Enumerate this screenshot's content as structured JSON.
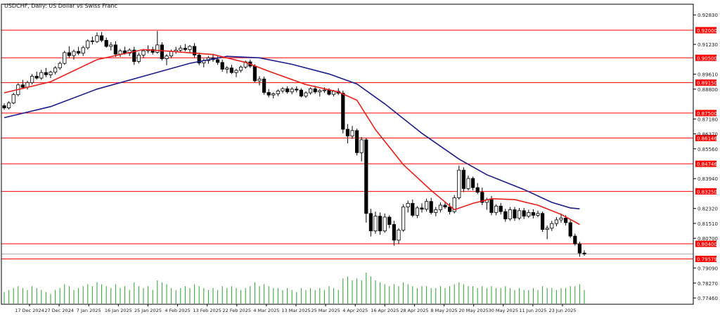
{
  "header": {
    "title": "USDCHF, Daily:  US Dollar vs Swiss Franc"
  },
  "colors": {
    "background": "#ffffff",
    "candle_body": "#000000",
    "candle_bull": "#ffffff",
    "level_line": "#ff0000",
    "level_label_bg": "#ff0000",
    "level_label_text": "#ffffff",
    "ma_fast": "#e8201a",
    "ma_slow": "#1c1c8c",
    "volume": "#2ca02c",
    "axis_text": "#222222"
  },
  "chart_data": {
    "type": "candlestick",
    "symbol": "USDCHF",
    "timeframe": "Daily",
    "y_axis": {
      "range": [
        0.7712,
        0.9341
      ],
      "ticks": [
        {
          "value": 0.9283,
          "label": "0.92830"
        },
        {
          "value": 0.9123,
          "label": "0.91230"
        },
        {
          "value": 0.8961,
          "label": "0.89610"
        },
        {
          "value": 0.888,
          "label": "0.88800"
        },
        {
          "value": 0.8718,
          "label": "0.87180"
        },
        {
          "value": 0.8637,
          "label": "0.86370"
        },
        {
          "value": 0.8556,
          "label": "0.85560"
        },
        {
          "value": 0.8394,
          "label": "0.83940"
        },
        {
          "value": 0.8232,
          "label": "0.82320"
        },
        {
          "value": 0.8151,
          "label": "0.81510"
        },
        {
          "value": 0.807,
          "label": "0.80700"
        },
        {
          "value": 0.7909,
          "label": "0.79090"
        },
        {
          "value": 0.7827,
          "label": "0.78270"
        },
        {
          "value": 0.7746,
          "label": "0.77460"
        }
      ]
    },
    "x_axis": {
      "labels": [
        "17 Dec 2024",
        "27 Dec 2024",
        "7 Jan 2025",
        "16 Jan 2025",
        "25 Jan 2025",
        "4 Feb 2025",
        "13 Feb 2025",
        "22 Feb 2025",
        "4 Mar 2025",
        "13 Mar 2025",
        "25 Mar 2025",
        "4 Apr 2025",
        "16 Apr 2025",
        "28 Apr 2025",
        "8 May 2025",
        "20 May 2025",
        "30 May 2025",
        "11 Jun 2025",
        "23 Jun 2025"
      ]
    },
    "levels": [
      {
        "value": 0.92,
        "label": "0.92000"
      },
      {
        "value": 0.905,
        "label": "0.90500"
      },
      {
        "value": 0.8915,
        "label": "0.89150"
      },
      {
        "value": 0.875,
        "label": "0.87500"
      },
      {
        "value": 0.86146,
        "label": "0.86146"
      },
      {
        "value": 0.84746,
        "label": "0.84746"
      },
      {
        "value": 0.8325,
        "label": "0.83250"
      },
      {
        "value": 0.804,
        "label": "0.80400"
      },
      {
        "value": 0.79579,
        "label": "0.79579"
      }
    ],
    "current_price": 0.7985,
    "volume_max": 16,
    "candles": [
      [
        0.879,
        0.8802,
        0.8768,
        0.8778,
        6
      ],
      [
        0.8778,
        0.8815,
        0.877,
        0.8805,
        7
      ],
      [
        0.8805,
        0.886,
        0.8798,
        0.885,
        8
      ],
      [
        0.885,
        0.8912,
        0.8842,
        0.8903,
        9
      ],
      [
        0.8903,
        0.893,
        0.888,
        0.889,
        8
      ],
      [
        0.889,
        0.8925,
        0.8878,
        0.8915,
        7
      ],
      [
        0.8915,
        0.8962,
        0.8905,
        0.895,
        9
      ],
      [
        0.895,
        0.8975,
        0.8932,
        0.894,
        8
      ],
      [
        0.894,
        0.8985,
        0.893,
        0.897,
        7
      ],
      [
        0.897,
        0.8995,
        0.8945,
        0.8958,
        6
      ],
      [
        0.8958,
        0.898,
        0.894,
        0.8972,
        5
      ],
      [
        0.8972,
        0.9005,
        0.896,
        0.8995,
        7
      ],
      [
        0.8995,
        0.903,
        0.8985,
        0.902,
        8
      ],
      [
        0.902,
        0.9088,
        0.9012,
        0.9078,
        10
      ],
      [
        0.9078,
        0.9112,
        0.905,
        0.9062,
        9
      ],
      [
        0.9062,
        0.9095,
        0.904,
        0.9085,
        7
      ],
      [
        0.9085,
        0.911,
        0.9065,
        0.9075,
        8
      ],
      [
        0.9075,
        0.9115,
        0.906,
        0.9105,
        9
      ],
      [
        0.9105,
        0.915,
        0.9095,
        0.9142,
        10
      ],
      [
        0.9142,
        0.9165,
        0.9122,
        0.9138,
        9
      ],
      [
        0.9138,
        0.9188,
        0.913,
        0.917,
        11
      ],
      [
        0.917,
        0.919,
        0.9135,
        0.9145,
        10
      ],
      [
        0.9145,
        0.916,
        0.9105,
        0.9112,
        9
      ],
      [
        0.9112,
        0.9135,
        0.909,
        0.912,
        8
      ],
      [
        0.912,
        0.914,
        0.9055,
        0.907,
        10
      ],
      [
        0.907,
        0.9098,
        0.9055,
        0.9088,
        8
      ],
      [
        0.9088,
        0.911,
        0.9068,
        0.9075,
        9
      ],
      [
        0.9075,
        0.9102,
        0.906,
        0.9092,
        7
      ],
      [
        0.9092,
        0.911,
        0.9012,
        0.903,
        11
      ],
      [
        0.903,
        0.9078,
        0.902,
        0.9065,
        9
      ],
      [
        0.9065,
        0.9098,
        0.905,
        0.9088,
        8
      ],
      [
        0.9088,
        0.9118,
        0.9075,
        0.9095,
        9
      ],
      [
        0.9095,
        0.911,
        0.9068,
        0.908,
        7
      ],
      [
        0.908,
        0.9195,
        0.9072,
        0.912,
        12
      ],
      [
        0.912,
        0.9135,
        0.9035,
        0.9045,
        11
      ],
      [
        0.9045,
        0.907,
        0.901,
        0.906,
        10
      ],
      [
        0.906,
        0.9095,
        0.9048,
        0.9085,
        8
      ],
      [
        0.9085,
        0.911,
        0.9072,
        0.9092,
        7
      ],
      [
        0.9092,
        0.9118,
        0.908,
        0.9102,
        8
      ],
      [
        0.9102,
        0.9125,
        0.9085,
        0.9095,
        9
      ],
      [
        0.9095,
        0.912,
        0.908,
        0.9112,
        8
      ],
      [
        0.9112,
        0.913,
        0.9052,
        0.9065,
        10
      ],
      [
        0.9065,
        0.9078,
        0.901,
        0.9022,
        9
      ],
      [
        0.9022,
        0.9045,
        0.8998,
        0.9035,
        8
      ],
      [
        0.9035,
        0.906,
        0.9018,
        0.905,
        7
      ],
      [
        0.905,
        0.9072,
        0.9028,
        0.904,
        8
      ],
      [
        0.904,
        0.9058,
        0.9012,
        0.9025,
        7
      ],
      [
        0.9025,
        0.904,
        0.8975,
        0.8988,
        9
      ],
      [
        0.8988,
        0.9005,
        0.8965,
        0.8995,
        8
      ],
      [
        0.8995,
        0.9012,
        0.8962,
        0.897,
        9
      ],
      [
        0.897,
        0.899,
        0.8945,
        0.8982,
        8
      ],
      [
        0.8982,
        0.9008,
        0.897,
        0.9,
        7
      ],
      [
        0.9,
        0.9035,
        0.899,
        0.9028,
        8
      ],
      [
        0.9028,
        0.904,
        0.8995,
        0.9005,
        9
      ],
      [
        0.9005,
        0.9015,
        0.8915,
        0.8925,
        11
      ],
      [
        0.8925,
        0.895,
        0.89,
        0.8935,
        9
      ],
      [
        0.8935,
        0.8948,
        0.885,
        0.8862,
        10
      ],
      [
        0.8862,
        0.888,
        0.8835,
        0.8848,
        9
      ],
      [
        0.8848,
        0.8862,
        0.883,
        0.8855,
        8
      ],
      [
        0.8855,
        0.8878,
        0.8842,
        0.887,
        8
      ],
      [
        0.887,
        0.8892,
        0.8858,
        0.8882,
        7
      ],
      [
        0.8882,
        0.8895,
        0.8855,
        0.8865,
        8
      ],
      [
        0.8865,
        0.889,
        0.8852,
        0.888,
        7
      ],
      [
        0.888,
        0.8895,
        0.8862,
        0.8875,
        6
      ],
      [
        0.8875,
        0.8885,
        0.8835,
        0.8842,
        8
      ],
      [
        0.8842,
        0.8868,
        0.8832,
        0.886,
        7
      ],
      [
        0.886,
        0.889,
        0.885,
        0.8882,
        8
      ],
      [
        0.8882,
        0.8898,
        0.8855,
        0.8865,
        7
      ],
      [
        0.8865,
        0.888,
        0.884,
        0.8872,
        8
      ],
      [
        0.8872,
        0.889,
        0.886,
        0.8875,
        7
      ],
      [
        0.8875,
        0.8885,
        0.8845,
        0.8852,
        9
      ],
      [
        0.8852,
        0.8875,
        0.884,
        0.8868,
        8
      ],
      [
        0.8868,
        0.8885,
        0.8848,
        0.8858,
        7
      ],
      [
        0.8858,
        0.8872,
        0.864,
        0.8662,
        13
      ],
      [
        0.8662,
        0.869,
        0.8585,
        0.8625,
        14
      ],
      [
        0.8625,
        0.868,
        0.861,
        0.8655,
        12
      ],
      [
        0.8655,
        0.8665,
        0.852,
        0.8535,
        13
      ],
      [
        0.8535,
        0.862,
        0.8488,
        0.8605,
        12
      ],
      [
        0.8605,
        0.8615,
        0.8155,
        0.8205,
        16
      ],
      [
        0.8205,
        0.823,
        0.808,
        0.811,
        14
      ],
      [
        0.811,
        0.8215,
        0.8095,
        0.819,
        12
      ],
      [
        0.819,
        0.821,
        0.809,
        0.811,
        11
      ],
      [
        0.811,
        0.8205,
        0.81,
        0.8185,
        10
      ],
      [
        0.8185,
        0.8195,
        0.8125,
        0.8145,
        9
      ],
      [
        0.8145,
        0.8165,
        0.803,
        0.806,
        10
      ],
      [
        0.806,
        0.8125,
        0.804,
        0.8115,
        9
      ],
      [
        0.8115,
        0.8255,
        0.8105,
        0.824,
        11
      ],
      [
        0.824,
        0.8275,
        0.821,
        0.826,
        10
      ],
      [
        0.826,
        0.828,
        0.8185,
        0.8195,
        9
      ],
      [
        0.8195,
        0.8245,
        0.818,
        0.8235,
        8
      ],
      [
        0.8235,
        0.826,
        0.821,
        0.8228,
        9
      ],
      [
        0.8228,
        0.8285,
        0.8215,
        0.827,
        9
      ],
      [
        0.827,
        0.829,
        0.82,
        0.821,
        8
      ],
      [
        0.821,
        0.824,
        0.819,
        0.8225,
        8
      ],
      [
        0.8225,
        0.8265,
        0.821,
        0.825,
        9
      ],
      [
        0.825,
        0.827,
        0.823,
        0.824,
        8
      ],
      [
        0.824,
        0.8262,
        0.82,
        0.8215,
        9
      ],
      [
        0.8215,
        0.8305,
        0.8205,
        0.829,
        10
      ],
      [
        0.829,
        0.8465,
        0.828,
        0.844,
        11
      ],
      [
        0.844,
        0.8455,
        0.832,
        0.834,
        10
      ],
      [
        0.834,
        0.841,
        0.833,
        0.8395,
        9
      ],
      [
        0.8395,
        0.8405,
        0.833,
        0.8345,
        9
      ],
      [
        0.8345,
        0.837,
        0.831,
        0.832,
        8
      ],
      [
        0.832,
        0.8345,
        0.825,
        0.8265,
        9
      ],
      [
        0.8265,
        0.829,
        0.8225,
        0.828,
        8
      ],
      [
        0.828,
        0.83,
        0.8195,
        0.821,
        9
      ],
      [
        0.821,
        0.8255,
        0.8195,
        0.8245,
        8
      ],
      [
        0.8245,
        0.8262,
        0.82,
        0.8215,
        8
      ],
      [
        0.8215,
        0.823,
        0.816,
        0.8175,
        9
      ],
      [
        0.8175,
        0.824,
        0.8165,
        0.8225,
        8
      ],
      [
        0.8225,
        0.824,
        0.8165,
        0.818,
        7
      ],
      [
        0.818,
        0.8235,
        0.817,
        0.822,
        8
      ],
      [
        0.822,
        0.8235,
        0.8175,
        0.819,
        7
      ],
      [
        0.819,
        0.8225,
        0.818,
        0.821,
        7
      ],
      [
        0.821,
        0.8228,
        0.8178,
        0.8195,
        8
      ],
      [
        0.8195,
        0.822,
        0.8185,
        0.8205,
        7
      ],
      [
        0.8205,
        0.8215,
        0.8105,
        0.8118,
        9
      ],
      [
        0.8118,
        0.814,
        0.8065,
        0.8125,
        8
      ],
      [
        0.8125,
        0.8165,
        0.811,
        0.815,
        8
      ],
      [
        0.815,
        0.8185,
        0.8135,
        0.817,
        7
      ],
      [
        0.817,
        0.8205,
        0.8155,
        0.818,
        8
      ],
      [
        0.818,
        0.8195,
        0.814,
        0.8155,
        8
      ],
      [
        0.8155,
        0.8168,
        0.8072,
        0.8082,
        9
      ],
      [
        0.8082,
        0.8095,
        0.803,
        0.804,
        9
      ],
      [
        0.804,
        0.8052,
        0.797,
        0.799,
        10
      ],
      [
        0.799,
        0.8005,
        0.7975,
        0.7985,
        7
      ]
    ],
    "ma_fast": [
      [
        0,
        0.886
      ],
      [
        10,
        0.892
      ],
      [
        20,
        0.904
      ],
      [
        30,
        0.9095
      ],
      [
        36,
        0.9085
      ],
      [
        45,
        0.9068
      ],
      [
        52,
        0.9025
      ],
      [
        58,
        0.8968
      ],
      [
        65,
        0.8905
      ],
      [
        72,
        0.8865
      ],
      [
        76,
        0.882
      ],
      [
        80,
        0.866
      ],
      [
        86,
        0.847
      ],
      [
        92,
        0.833
      ],
      [
        97,
        0.8225
      ],
      [
        101,
        0.826
      ],
      [
        105,
        0.8285
      ],
      [
        110,
        0.828
      ],
      [
        115,
        0.825
      ],
      [
        120,
        0.82
      ],
      [
        124,
        0.8145
      ]
    ],
    "ma_slow": [
      [
        0,
        0.8725
      ],
      [
        10,
        0.8785
      ],
      [
        20,
        0.888
      ],
      [
        30,
        0.895
      ],
      [
        40,
        0.902
      ],
      [
        48,
        0.9058
      ],
      [
        55,
        0.905
      ],
      [
        62,
        0.9015
      ],
      [
        70,
        0.8962
      ],
      [
        76,
        0.8908
      ],
      [
        82,
        0.88
      ],
      [
        90,
        0.864
      ],
      [
        98,
        0.85
      ],
      [
        104,
        0.8415
      ],
      [
        112,
        0.8335
      ],
      [
        118,
        0.8265
      ],
      [
        122,
        0.8235
      ],
      [
        124,
        0.823
      ]
    ]
  }
}
